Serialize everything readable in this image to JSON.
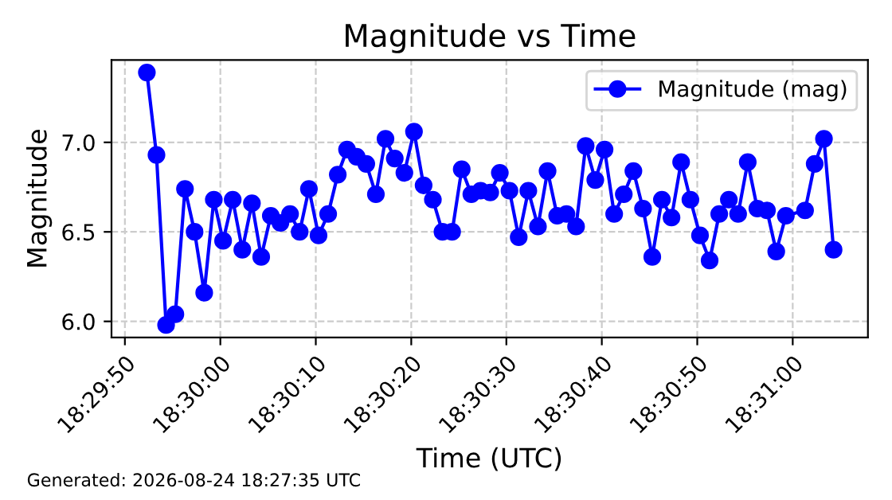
{
  "chart_data": {
    "type": "line",
    "title": "Magnitude vs Time",
    "xlabel": "Time (UTC)",
    "ylabel": "Magnitude",
    "annotations": [
      "Generated: 2026-08-24 18:27:35 UTC"
    ],
    "x": [
      18.49786,
      18.49814,
      18.49842,
      18.49869,
      18.49897,
      18.49925,
      18.49953,
      18.49981,
      18.50008,
      18.50036,
      18.50064,
      18.50092,
      18.50119,
      18.50147,
      18.50175,
      18.50203,
      18.50231,
      18.50258,
      18.50286,
      18.50314,
      18.50342,
      18.50369,
      18.50397,
      18.50425,
      18.50453,
      18.50481,
      18.50508,
      18.50536,
      18.50564,
      18.50592,
      18.50619,
      18.50647,
      18.50675,
      18.50703,
      18.50731,
      18.50758,
      18.50786,
      18.50814,
      18.50842,
      18.50869,
      18.50897,
      18.50925,
      18.50953,
      18.50981,
      18.51008,
      18.51036,
      18.51064,
      18.51092,
      18.51119,
      18.51147,
      18.51175,
      18.51203,
      18.51231,
      18.51258,
      18.51286,
      18.51314,
      18.51342,
      18.51369,
      18.51397,
      18.51425,
      18.51453,
      18.51481,
      18.51508,
      18.51536,
      18.51564,
      18.51592,
      18.51619,
      18.51647,
      18.51703,
      18.51731,
      18.51758,
      18.51786
    ],
    "series": [
      {
        "name": "Magnitude (mag)",
        "color": "#0000ff",
        "values": [
          7.39,
          6.93,
          5.98,
          6.04,
          6.74,
          6.5,
          6.16,
          6.68,
          6.45,
          6.68,
          6.4,
          6.66,
          6.36,
          6.59,
          6.55,
          6.6,
          6.5,
          6.74,
          6.48,
          6.6,
          6.82,
          6.96,
          6.92,
          6.88,
          6.71,
          7.02,
          6.91,
          6.83,
          7.06,
          6.76,
          6.68,
          6.5,
          6.5,
          6.85,
          6.71,
          6.73,
          6.72,
          6.83,
          6.73,
          6.47,
          6.73,
          6.53,
          6.84,
          6.59,
          6.6,
          6.53,
          6.98,
          6.79,
          6.96,
          6.6,
          6.71,
          6.84,
          6.63,
          6.36,
          6.68,
          6.58,
          6.89,
          6.68,
          6.48,
          6.34,
          6.6,
          6.68,
          6.6,
          6.89,
          6.63,
          6.62,
          6.39,
          6.59,
          6.62,
          6.88,
          7.02,
          6.4
        ]
      }
    ],
    "xlim": [
      18.49683,
      18.51886
    ],
    "ylim": [
      5.91,
      7.46
    ],
    "xticks": [
      {
        "value": 18.49722,
        "label": "18:29:50"
      },
      {
        "value": 18.5,
        "label": "18:30:00"
      },
      {
        "value": 18.50278,
        "label": "18:30:10"
      },
      {
        "value": 18.50556,
        "label": "18:30:20"
      },
      {
        "value": 18.50833,
        "label": "18:30:30"
      },
      {
        "value": 18.51111,
        "label": "18:30:40"
      },
      {
        "value": 18.51389,
        "label": "18:30:50"
      },
      {
        "value": 18.51667,
        "label": "18:31:00"
      }
    ],
    "yticks": [
      {
        "value": 6,
        "label": "6.0"
      },
      {
        "value": 6.5,
        "label": "6.5"
      },
      {
        "value": 7,
        "label": "7.0"
      }
    ],
    "grid": true,
    "legend": "top right",
    "marker": "circle",
    "line_style": "solid"
  }
}
